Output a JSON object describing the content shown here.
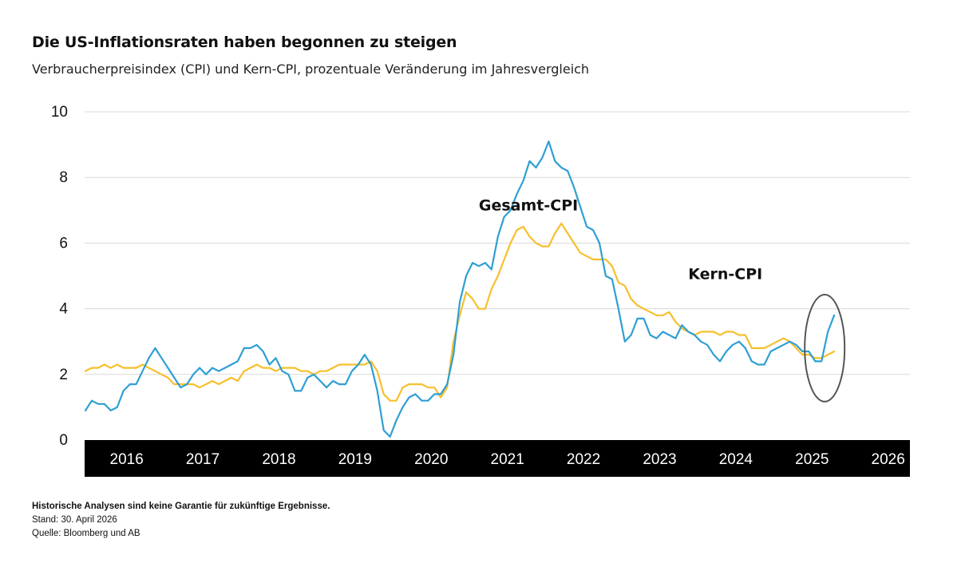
{
  "title": "Die US-Inflationsraten haben begonnen zu steigen",
  "subtitle": "Verbraucherpreisindex (CPI) und Kern-CPI, prozentuale Veränderung im Jahresvergleich",
  "footer": {
    "disclaimer": "Historische Analysen sind keine Garantie für zukünftige Ergebnisse.",
    "date": "Stand: 30. April 2026",
    "source": "Quelle: Bloomberg und AB"
  },
  "colors": {
    "headline_cpi": "#2e9fd4",
    "core_cpi": "#f7bf2c",
    "grid": "#d9d9d9",
    "axis_bar": "#000000",
    "highlight_ellipse": "#555555"
  },
  "chart_data": {
    "type": "line",
    "start": "2015-12",
    "frequency": "monthly",
    "ylim": [
      0,
      10
    ],
    "yticks": [
      "0",
      "2",
      "4",
      "6",
      "8",
      "10"
    ],
    "xticks": [
      "2016",
      "2017",
      "2018",
      "2019",
      "2020",
      "2021",
      "2022",
      "2023",
      "2024",
      "2025",
      "2026"
    ],
    "grid": "horizontal",
    "series": [
      {
        "name": "Gesamt-CPI",
        "values": [
          0.9,
          1.2,
          1.1,
          1.1,
          0.9,
          1.0,
          1.5,
          1.7,
          1.7,
          2.1,
          2.5,
          2.8,
          2.5,
          2.2,
          1.9,
          1.6,
          1.7,
          2.0,
          2.2,
          2.0,
          2.2,
          2.1,
          2.2,
          2.3,
          2.4,
          2.8,
          2.8,
          2.9,
          2.7,
          2.3,
          2.5,
          2.1,
          2.0,
          1.5,
          1.5,
          1.9,
          2.0,
          1.8,
          1.6,
          1.8,
          1.7,
          1.7,
          2.1,
          2.3,
          2.6,
          2.3,
          1.5,
          0.3,
          0.1,
          0.6,
          1.0,
          1.3,
          1.4,
          1.2,
          1.2,
          1.4,
          1.4,
          1.7,
          2.6,
          4.2,
          5.0,
          5.4,
          5.3,
          5.4,
          5.2,
          6.2,
          6.8,
          7.0,
          7.5,
          7.9,
          8.5,
          8.3,
          8.6,
          9.1,
          8.5,
          8.3,
          8.2,
          7.7,
          7.1,
          6.5,
          6.4,
          6.0,
          5.0,
          4.9,
          4.0,
          3.0,
          3.2,
          3.7,
          3.7,
          3.2,
          3.1,
          3.3,
          3.2,
          3.1,
          3.5,
          3.3,
          3.2,
          3.0,
          2.9,
          2.6,
          2.4,
          2.7,
          2.9,
          3.0,
          2.8,
          2.4,
          2.3,
          2.3,
          2.7,
          2.8,
          2.9,
          3.0,
          2.9,
          2.7,
          2.7,
          2.4,
          2.4,
          3.3,
          3.8
        ],
        "label_position": {
          "x": "2021-02",
          "y": 7.0
        }
      },
      {
        "name": "Kern-CPI",
        "values": [
          2.1,
          2.2,
          2.2,
          2.3,
          2.2,
          2.3,
          2.2,
          2.2,
          2.2,
          2.3,
          2.2,
          2.1,
          2.0,
          1.9,
          1.7,
          1.7,
          1.7,
          1.7,
          1.6,
          1.7,
          1.8,
          1.7,
          1.8,
          1.9,
          1.8,
          2.1,
          2.2,
          2.3,
          2.2,
          2.2,
          2.1,
          2.2,
          2.2,
          2.2,
          2.1,
          2.1,
          2.0,
          2.1,
          2.1,
          2.2,
          2.3,
          2.3,
          2.3,
          2.3,
          2.3,
          2.4,
          2.1,
          1.4,
          1.2,
          1.2,
          1.6,
          1.7,
          1.7,
          1.7,
          1.6,
          1.6,
          1.3,
          1.6,
          3.0,
          3.8,
          4.5,
          4.3,
          4.0,
          4.0,
          4.6,
          5.0,
          5.5,
          6.0,
          6.4,
          6.5,
          6.2,
          6.0,
          5.9,
          5.9,
          6.3,
          6.6,
          6.3,
          6.0,
          5.7,
          5.6,
          5.5,
          5.5,
          5.5,
          5.3,
          4.8,
          4.7,
          4.3,
          4.1,
          4.0,
          3.9,
          3.8,
          3.8,
          3.9,
          3.6,
          3.4,
          3.3,
          3.2,
          3.3,
          3.3,
          3.3,
          3.2,
          3.3,
          3.3,
          3.2,
          3.2,
          2.8,
          2.8,
          2.8,
          2.9,
          3.0,
          3.1,
          3.0,
          2.8,
          2.6,
          2.6,
          2.5,
          2.5,
          2.6,
          2.7
        ],
        "label_position": {
          "x": "2023-11",
          "y": 4.9
        }
      }
    ]
  }
}
